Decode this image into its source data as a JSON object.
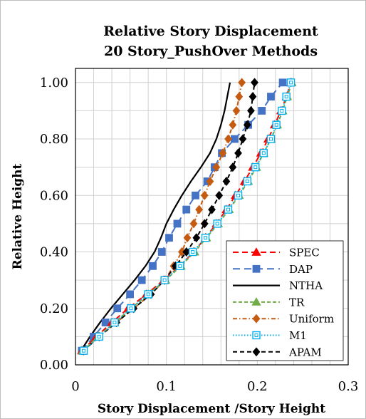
{
  "chart_data": {
    "type": "line",
    "title_line1": "Relative Story Displacement",
    "title_line2": "20 Story_PushOver Methods",
    "xlabel": "Story Displacement /Story Height",
    "ylabel": "Relative Height",
    "xlim": [
      0,
      0.3
    ],
    "ylim": [
      0,
      1.05
    ],
    "x_ticks": [
      0,
      0.1,
      0.2,
      0.3
    ],
    "x_tick_labels": [
      "0",
      "0.1",
      "0.2",
      "0.3"
    ],
    "y_ticks": [
      0,
      0.2,
      0.4,
      0.6,
      0.8,
      1.0
    ],
    "y_tick_labels": [
      "0.00",
      "0.20",
      "0.40",
      "0.60",
      "0.80",
      "1.00"
    ],
    "grid": true,
    "legend_position": "bottom-right",
    "heights": [
      0.05,
      0.1,
      0.15,
      0.2,
      0.25,
      0.3,
      0.35,
      0.4,
      0.45,
      0.5,
      0.55,
      0.6,
      0.65,
      0.7,
      0.75,
      0.8,
      0.85,
      0.9,
      0.95,
      1.0
    ],
    "series": [
      {
        "name": "SPEC",
        "color": "#ff0000",
        "dash": "8,5",
        "marker": "triangle",
        "x": [
          0.007,
          0.023,
          0.04,
          0.058,
          0.078,
          0.097,
          0.115,
          0.13,
          0.143,
          0.155,
          0.166,
          0.176,
          0.186,
          0.195,
          0.204,
          0.212,
          0.219,
          0.226,
          0.232,
          0.237
        ]
      },
      {
        "name": "DAP",
        "color": "#4472c4",
        "dash": "10,6",
        "marker": "square",
        "x": [
          0.007,
          0.02,
          0.033,
          0.046,
          0.06,
          0.073,
          0.085,
          0.095,
          0.103,
          0.112,
          0.122,
          0.132,
          0.145,
          0.153,
          0.161,
          0.175,
          0.19,
          0.205,
          0.215,
          0.228
        ]
      },
      {
        "name": "NTHA",
        "color": "#000000",
        "dash": "",
        "marker": "none",
        "x": [
          0.006,
          0.016,
          0.027,
          0.039,
          0.052,
          0.065,
          0.077,
          0.087,
          0.094,
          0.1,
          0.108,
          0.117,
          0.127,
          0.138,
          0.148,
          0.155,
          0.16,
          0.164,
          0.167,
          0.17
        ]
      },
      {
        "name": "TR",
        "color": "#70ad47",
        "dash": "5,3",
        "marker": "triangle",
        "x": [
          0.008,
          0.025,
          0.043,
          0.061,
          0.08,
          0.099,
          0.116,
          0.131,
          0.144,
          0.157,
          0.169,
          0.18,
          0.19,
          0.199,
          0.207,
          0.215,
          0.222,
          0.228,
          0.233,
          0.238
        ]
      },
      {
        "name": "Uniform",
        "color": "#c55a11",
        "dash": "6,3,1.5,3",
        "marker": "diamond",
        "x": [
          0.008,
          0.026,
          0.045,
          0.064,
          0.083,
          0.098,
          0.108,
          0.117,
          0.123,
          0.13,
          0.136,
          0.142,
          0.148,
          0.155,
          0.162,
          0.168,
          0.173,
          0.177,
          0.18,
          0.183
        ]
      },
      {
        "name": "M1",
        "color": "#00b0f0",
        "dash": "1.5,2.5",
        "marker": "square-open",
        "x": [
          0.009,
          0.026,
          0.043,
          0.061,
          0.08,
          0.098,
          0.115,
          0.129,
          0.143,
          0.156,
          0.168,
          0.179,
          0.189,
          0.198,
          0.207,
          0.215,
          0.221,
          0.227,
          0.232,
          0.237
        ]
      },
      {
        "name": "APAM",
        "color": "#000000",
        "dash": "6,4",
        "marker": "diamond",
        "x": [
          0.009,
          0.026,
          0.045,
          0.064,
          0.083,
          0.098,
          0.11,
          0.122,
          0.133,
          0.142,
          0.15,
          0.158,
          0.166,
          0.173,
          0.179,
          0.184,
          0.189,
          0.193,
          0.195,
          0.197
        ]
      }
    ]
  }
}
